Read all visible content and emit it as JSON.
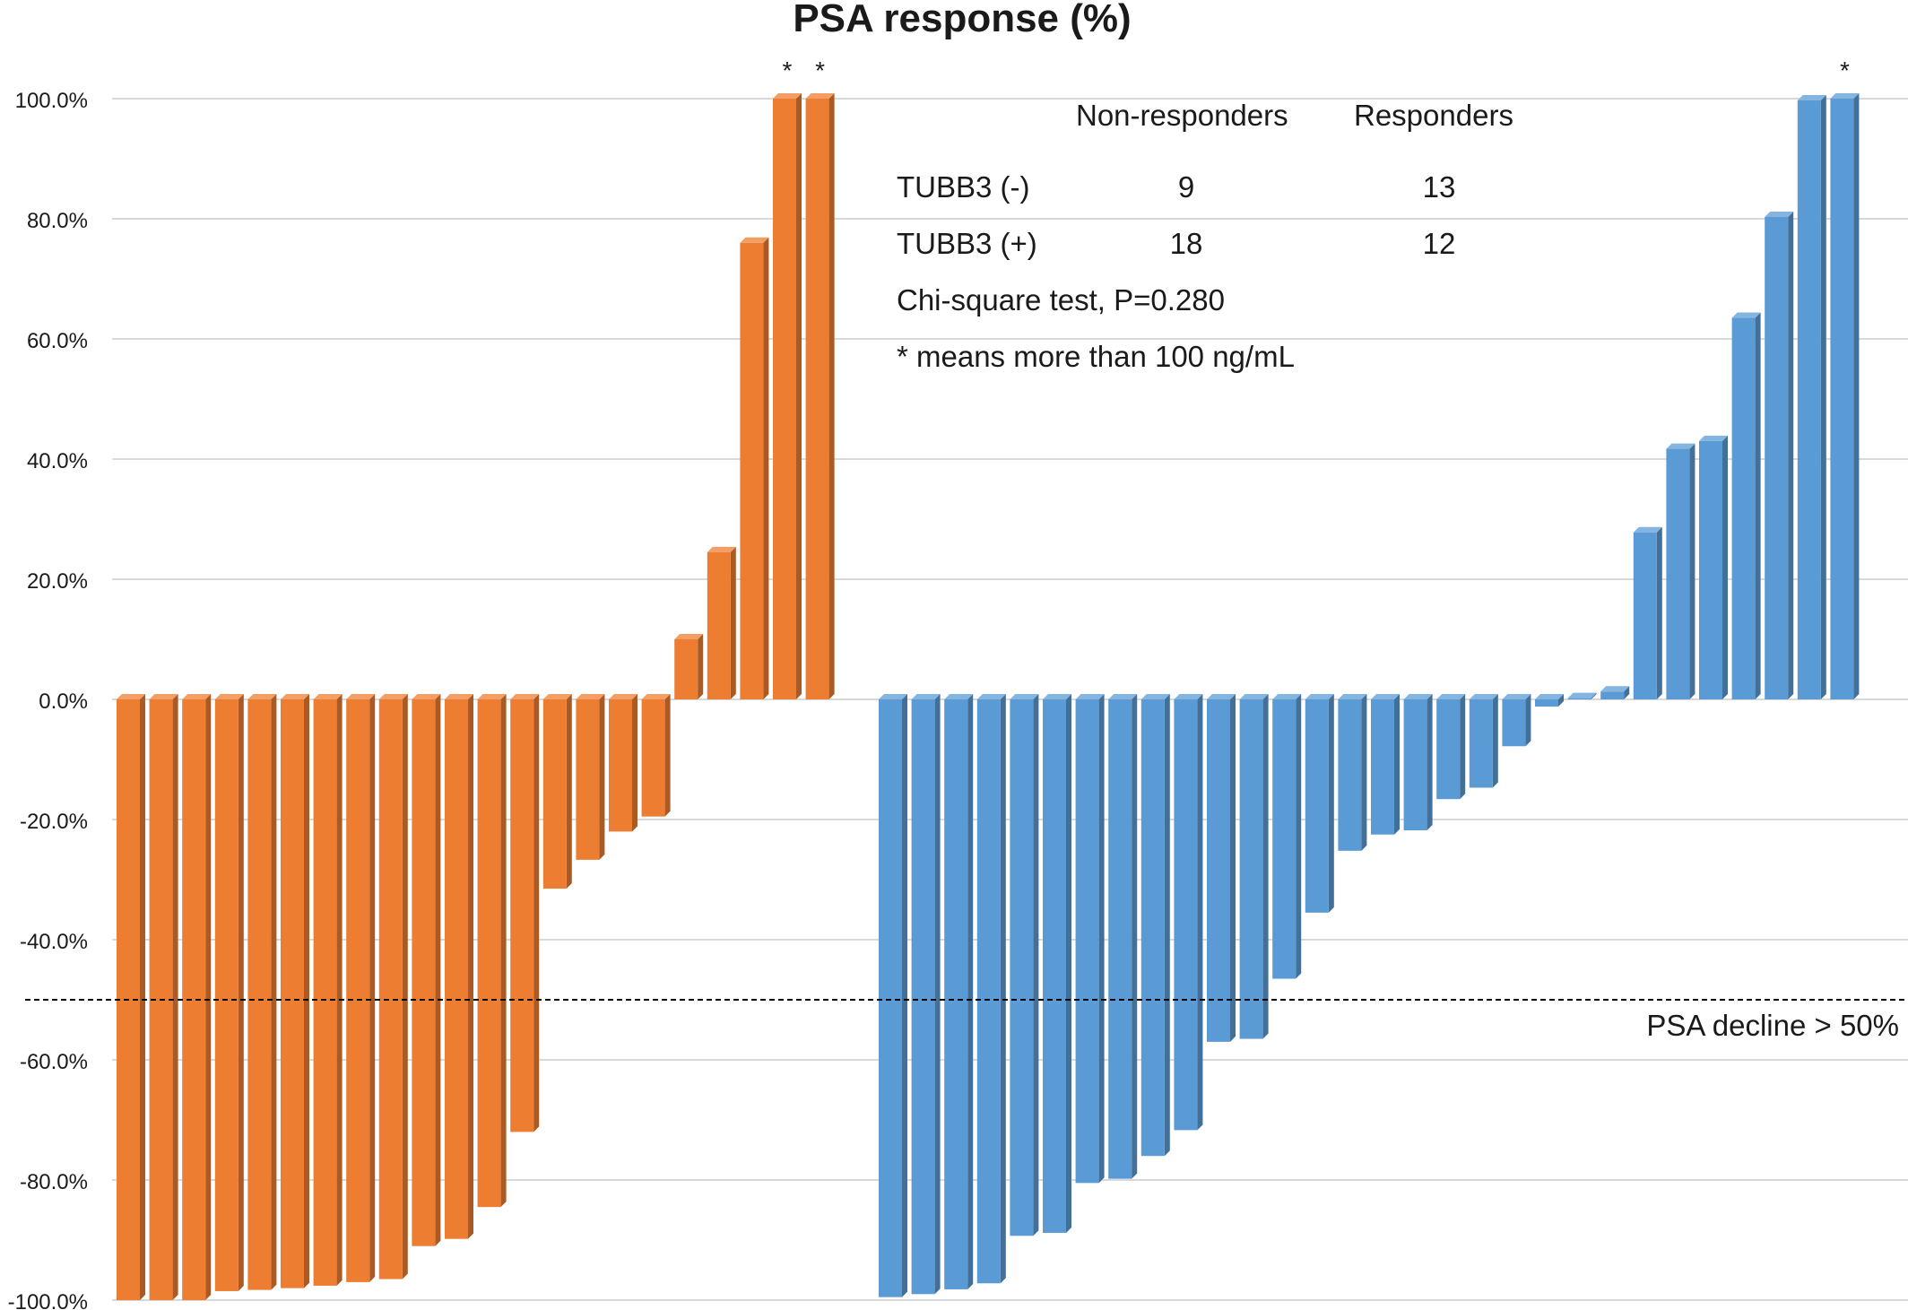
{
  "chart_data": {
    "type": "bar",
    "title": "PSA response (%)",
    "xlabel": "",
    "ylabel": "",
    "ylim": [
      -100,
      100
    ],
    "y_tick_labels": [
      "100.0%",
      "80.0%",
      "60.0%",
      "40.0%",
      "20.0%",
      "0.0%",
      "-20.0%",
      "-40.0%",
      "-60.0%",
      "-80.0%",
      "-100.0%"
    ],
    "grid": true,
    "series": [
      {
        "color": "#ED7D31",
        "values": [
          -100,
          -100,
          -100,
          -98.5,
          -98.3,
          -98,
          -97.6,
          -97,
          -96.5,
          -91,
          -89.8,
          -84.5,
          -72,
          -31.5,
          -26.7,
          -22,
          -19.5,
          10,
          24.5,
          76,
          100,
          100
        ],
        "starred_indices": [
          20,
          21
        ]
      },
      {
        "color": "#5B9BD5",
        "values": [
          -99.5,
          -99,
          -98.2,
          -97.2,
          -89.3,
          -88.8,
          -80.5,
          -79.8,
          -76,
          -71.7,
          -57,
          -56.5,
          -46.5,
          -35.5,
          -25.2,
          -22.5,
          -21.8,
          -16.6,
          -14.7,
          -7.8,
          -1.2,
          0.2,
          1.3,
          27.8,
          41.7,
          43,
          63.5,
          80.3,
          99.7,
          100
        ],
        "starred_indices": [
          29
        ]
      }
    ],
    "reference_line": {
      "value": -50,
      "label": "PSA decline > 50%",
      "style": "dashed"
    },
    "annotation_table": {
      "headers": [
        "Non-responders",
        "Responders"
      ],
      "rows": [
        {
          "label": "TUBB3 (-)",
          "values": [
            "9",
            "13"
          ]
        },
        {
          "label": "TUBB3 (+)",
          "values": [
            "18",
            "12"
          ]
        }
      ],
      "notes": [
        "Chi-square test, P=0.280",
        "* means more than 100 ng/mL"
      ]
    },
    "star_symbol": "*"
  }
}
